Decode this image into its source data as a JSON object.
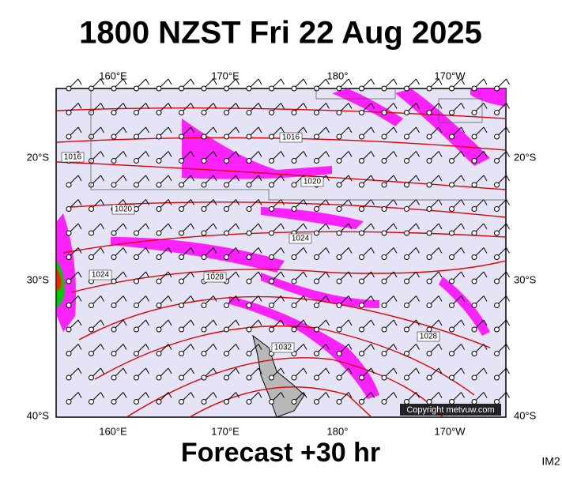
{
  "header": {
    "title": "1800 NZST Fri 22 Aug 2025"
  },
  "map": {
    "lon_labels": [
      "160°E",
      "170°E",
      "180°",
      "170°W"
    ],
    "lat_labels": [
      "20°S",
      "30°S",
      "40°S"
    ],
    "isobar_labels": [
      1016,
      1016,
      1020,
      1020,
      1024,
      1024,
      1028,
      1028,
      1032
    ],
    "copyright": "Copyright metvuw.com"
  },
  "footer": {
    "forecast": "Forecast +30 hr",
    "code": "IM2"
  }
}
